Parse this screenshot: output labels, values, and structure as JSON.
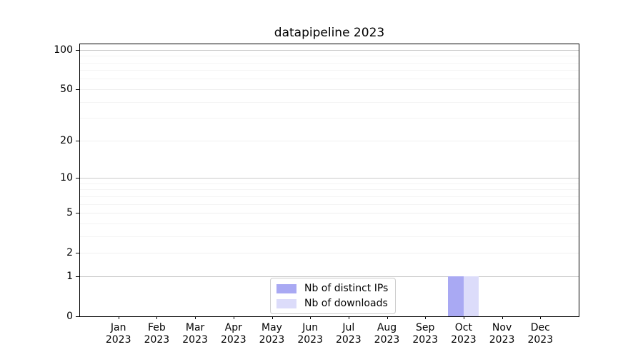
{
  "chart_data": {
    "type": "bar",
    "title": "datapipeline 2023",
    "categories": [
      "Jan",
      "Feb",
      "Mar",
      "Apr",
      "May",
      "Jun",
      "Jul",
      "Aug",
      "Sep",
      "Oct",
      "Nov",
      "Dec"
    ],
    "category_year": "2023",
    "series": [
      {
        "name": "Nb of distinct IPs",
        "color": "#a9a9f3",
        "values": [
          0,
          0,
          0,
          0,
          0,
          0,
          0,
          0,
          0,
          1,
          0,
          0
        ]
      },
      {
        "name": "Nb of downloads",
        "color": "#dcdcfa",
        "values": [
          0,
          0,
          0,
          0,
          0,
          0,
          0,
          0,
          0,
          1,
          0,
          0
        ]
      }
    ],
    "xlabel": "",
    "ylabel": "",
    "yscale": "log1p",
    "ylim": [
      0,
      110
    ],
    "yticks": [
      0,
      1,
      2,
      5,
      10,
      20,
      50,
      100
    ],
    "decade_ticks": [
      1,
      10,
      100
    ],
    "minor_yticks": [
      3,
      4,
      6,
      7,
      8,
      9,
      30,
      40,
      60,
      70,
      80,
      90
    ],
    "grid": "horizontal major+minor",
    "legend_position": "lower center inside"
  }
}
